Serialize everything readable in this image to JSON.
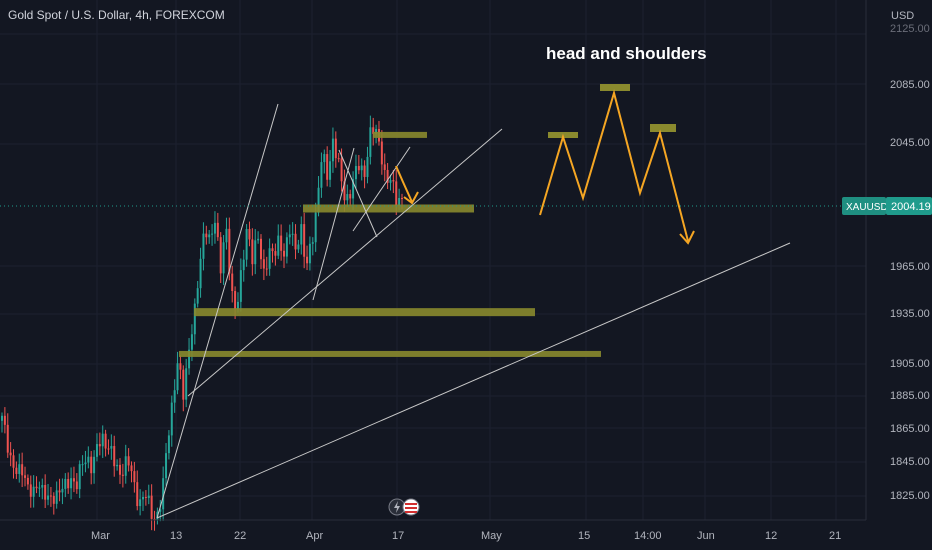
{
  "header": {
    "symbol_title": "Gold Spot / U.S. Dollar, 4h, FOREXCOM"
  },
  "price_axis": {
    "currency": "USD",
    "ticks": [
      "2085.00",
      "2045.00",
      "1965.00",
      "1935.00",
      "1905.00",
      "1885.00",
      "1865.00",
      "1845.00",
      "1825.00"
    ],
    "top_partial": "2125.00"
  },
  "time_axis": {
    "labels": [
      "Mar",
      "13",
      "22",
      "Apr",
      "17",
      "May",
      "15",
      "14:00",
      "Jun",
      "12",
      "21"
    ]
  },
  "last_price": {
    "symbol": "XAUUSD",
    "value": "2004.19"
  },
  "annotation": {
    "text": "head and shoulders"
  },
  "colors": {
    "background": "#131722",
    "up": "#26a69a",
    "down": "#ef5350",
    "zone": "#8a8a2e",
    "arrow": "#f5a623",
    "trend": "#c8c8c8",
    "price_line": "#1f9b8c"
  },
  "chart_data": {
    "type": "candlestick",
    "title": "Gold Spot / U.S. Dollar, 4h, FOREXCOM",
    "ylim": [
      1812,
      2130
    ],
    "unit": "USD",
    "last": 2004.19,
    "series": [
      {
        "x": "Feb 21",
        "path": [
          1872,
          1860,
          1846,
          1838,
          1844,
          1832,
          1826,
          1836,
          1830,
          1821,
          1828,
          1834,
          1830,
          1838,
          1836,
          1844,
          1850,
          1846,
          1856,
          1862,
          1858,
          1846,
          1840,
          1848,
          1844,
          1830,
          1824,
          1826,
          1818,
          1814,
          1824,
          1862,
          1885,
          1905,
          1890,
          1915,
          1930,
          1965,
          1990,
          1975,
          1995,
          1965,
          1985,
          1950,
          1940,
          1960,
          1990,
          1970,
          1980,
          1960,
          1975,
          1968,
          1982,
          1972,
          1985,
          1975,
          1990,
          1960,
          1980,
          2000,
          2030,
          2020,
          2040,
          2025,
          2010,
          2005,
          2015,
          2028,
          2020,
          2040,
          2050,
          2035,
          2010,
          2020,
          2005,
          2000
        ]
      }
    ],
    "zones": [
      {
        "from": "Apr 17",
        "to": "Apr 19",
        "price": 2043
      },
      {
        "from": "Apr 3",
        "to": "Apr 30",
        "price": 1999
      },
      {
        "from": "Mar 16",
        "to": "May 5",
        "price": 1937
      },
      {
        "from": "Mar 15",
        "to": "May 12",
        "price": 1912
      }
    ]
  }
}
